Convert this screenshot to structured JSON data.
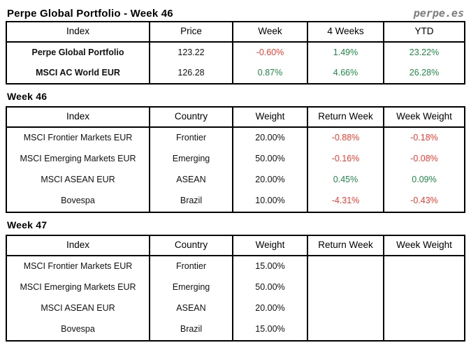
{
  "page": {
    "title": "Perpe Global Portfolio - Week 46",
    "brand": "perpe.es"
  },
  "colors": {
    "positive": "#1e8c46",
    "negative": "#ff3b30",
    "brand_gray": "#7d7d7d",
    "border": "#000000"
  },
  "summary_table": {
    "headers": [
      "Index",
      "Price",
      "Week",
      "4 Weeks",
      "YTD"
    ],
    "rows": [
      {
        "index": "Perpe Global Portfolio",
        "price": "123.22",
        "week": "-0.60%",
        "four_weeks": "1.49%",
        "ytd": "23.22%"
      },
      {
        "index": "MSCI AC World EUR",
        "price": "126.28",
        "week": "0.87%",
        "four_weeks": "4.66%",
        "ytd": "26.28%"
      }
    ]
  },
  "week46": {
    "heading": "Week 46",
    "headers": [
      "Index",
      "Country",
      "Weight",
      "Return Week",
      "Week Weight"
    ],
    "rows": [
      {
        "index": "MSCI Frontier Markets EUR",
        "country": "Frontier",
        "weight": "20.00%",
        "return_week": "-0.88%",
        "week_weight": "-0.18%"
      },
      {
        "index": "MSCI Emerging Markets EUR",
        "country": "Emerging",
        "weight": "50.00%",
        "return_week": "-0.16%",
        "week_weight": "-0.08%"
      },
      {
        "index": "MSCI ASEAN EUR",
        "country": "ASEAN",
        "weight": "20.00%",
        "return_week": "0.45%",
        "week_weight": "0.09%"
      },
      {
        "index": "Bovespa",
        "country": "Brazil",
        "weight": "10.00%",
        "return_week": "-4.31%",
        "week_weight": "-0.43%"
      }
    ]
  },
  "week47": {
    "heading": "Week 47",
    "headers": [
      "Index",
      "Country",
      "Weight",
      "Return Week",
      "Week Weight"
    ],
    "rows": [
      {
        "index": "MSCI Frontier Markets EUR",
        "country": "Frontier",
        "weight": "15.00%",
        "return_week": "",
        "week_weight": ""
      },
      {
        "index": "MSCI Emerging Markets EUR",
        "country": "Emerging",
        "weight": "50.00%",
        "return_week": "",
        "week_weight": ""
      },
      {
        "index": "MSCI ASEAN EUR",
        "country": "ASEAN",
        "weight": "20.00%",
        "return_week": "",
        "week_weight": ""
      },
      {
        "index": "Bovespa",
        "country": "Brazil",
        "weight": "15.00%",
        "return_week": "",
        "week_weight": ""
      }
    ]
  }
}
